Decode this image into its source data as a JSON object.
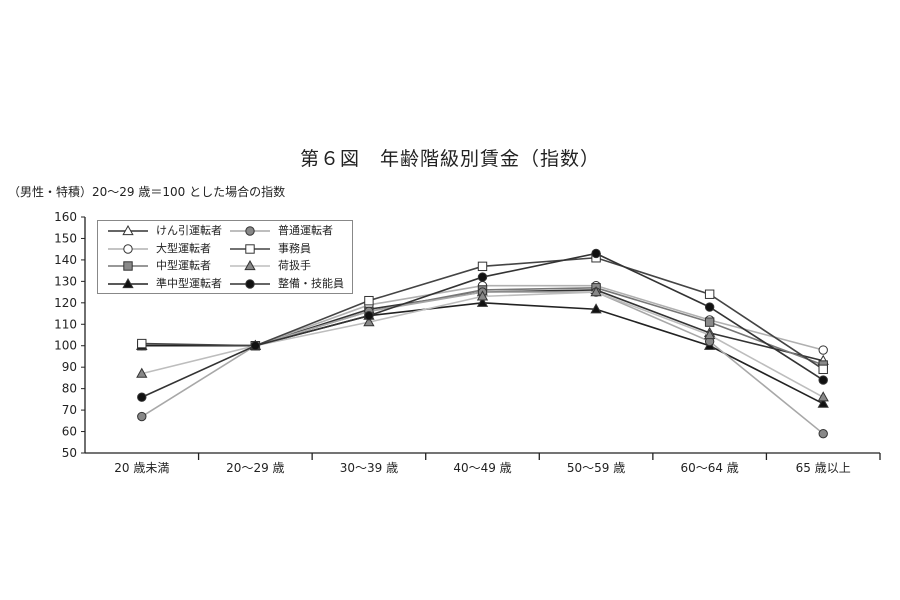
{
  "chart_data": {
    "type": "line",
    "title": "第６図　年齢階級別賃金（指数）",
    "subtitle": "（男性・特積）20～29 歳＝100 とした場合の指数",
    "xlabel": "",
    "ylabel": "",
    "ylim": [
      50,
      160
    ],
    "yticks": [
      50,
      60,
      70,
      80,
      90,
      100,
      110,
      120,
      130,
      140,
      150,
      160
    ],
    "grid": false,
    "legend_placement": "top-left",
    "categories": [
      "20 歳未満",
      "20～29 歳",
      "30～39 歳",
      "40～49 歳",
      "50～59 歳",
      "60～64 歳",
      "65 歳以上"
    ],
    "series": [
      {
        "name": "けん引運転者",
        "values": [
          100,
          100,
          117,
          125,
          126,
          106,
          93
        ],
        "line": "#333333",
        "marker": "triangle",
        "fill": "#ffffff"
      },
      {
        "name": "大型運転者",
        "values": [
          100,
          100,
          119,
          128,
          128,
          112,
          98
        ],
        "line": "#b0b0b0",
        "marker": "circle",
        "fill": "#ffffff"
      },
      {
        "name": "中型運転者",
        "values": [
          100,
          100,
          116,
          126,
          127,
          111,
          91
        ],
        "line": "#777777",
        "marker": "square",
        "fill": "#8a8a8a"
      },
      {
        "name": "準中型運転者",
        "values": [
          100,
          100,
          114,
          120,
          117,
          100,
          73
        ],
        "line": "#222222",
        "marker": "triangle",
        "fill": "#111111"
      },
      {
        "name": "普通運転者",
        "values": [
          67,
          100,
          116,
          125,
          125,
          102,
          59
        ],
        "line": "#a8a8a8",
        "marker": "circle",
        "fill": "#888888"
      },
      {
        "name": "事務員",
        "values": [
          101,
          100,
          121,
          137,
          141,
          124,
          89
        ],
        "line": "#444444",
        "marker": "square",
        "fill": "#ffffff"
      },
      {
        "name": "荷扱手",
        "values": [
          87,
          100,
          111,
          123,
          125,
          105,
          76
        ],
        "line": "#bdbdbd",
        "marker": "triangle",
        "fill": "#888888"
      },
      {
        "name": "整備・技能員",
        "values": [
          76,
          100,
          114,
          132,
          143,
          118,
          84
        ],
        "line": "#333333",
        "marker": "circle",
        "fill": "#111111"
      }
    ]
  }
}
